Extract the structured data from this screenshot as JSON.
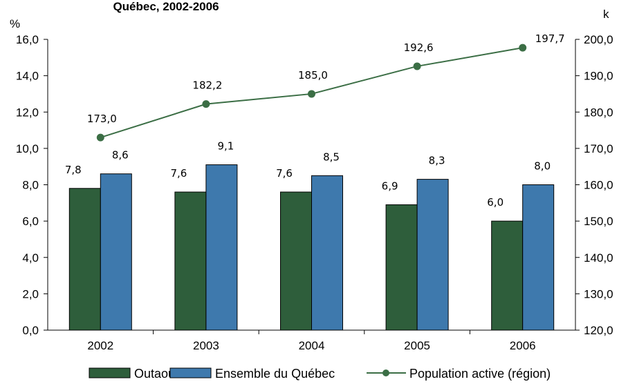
{
  "chart_data": {
    "type": "bar",
    "title": "Québec, 2002-2006",
    "left_axis_unit": "%",
    "right_axis_unit": "k",
    "categories": [
      "2002",
      "2003",
      "2004",
      "2005",
      "2006"
    ],
    "ylim": [
      0,
      16
    ],
    "y_ticks": [
      "0,0",
      "2,0",
      "4,0",
      "6,0",
      "8,0",
      "10,0",
      "12,0",
      "14,0",
      "16,0"
    ],
    "y2lim": [
      120,
      200
    ],
    "y2_ticks": [
      "120,0",
      "130,0",
      "140,0",
      "150,0",
      "160,0",
      "170,0",
      "180,0",
      "190,0",
      "200,0"
    ],
    "series": [
      {
        "name": "Outaouais",
        "kind": "bar",
        "axis": "left",
        "color": "#2e5e3b",
        "values": [
          7.8,
          7.6,
          7.6,
          6.9,
          6.0
        ],
        "labels": [
          "7,8",
          "7,6",
          "7,6",
          "6,9",
          "6,0"
        ]
      },
      {
        "name": "Ensemble du Québec",
        "kind": "bar",
        "axis": "left",
        "color": "#3e79ad",
        "values": [
          8.6,
          9.1,
          8.5,
          8.3,
          8.0
        ],
        "labels": [
          "8,6",
          "9,1",
          "8,5",
          "8,3",
          "8,0"
        ]
      },
      {
        "name": "Population active (région)",
        "kind": "line",
        "axis": "right",
        "color": "#3b6e45",
        "values": [
          173.0,
          182.2,
          185.0,
          192.6,
          197.7
        ],
        "labels": [
          "173,0",
          "182,2",
          "185,0",
          "192,6",
          "197,7"
        ]
      }
    ],
    "legend_position": "bottom",
    "grid": false
  }
}
